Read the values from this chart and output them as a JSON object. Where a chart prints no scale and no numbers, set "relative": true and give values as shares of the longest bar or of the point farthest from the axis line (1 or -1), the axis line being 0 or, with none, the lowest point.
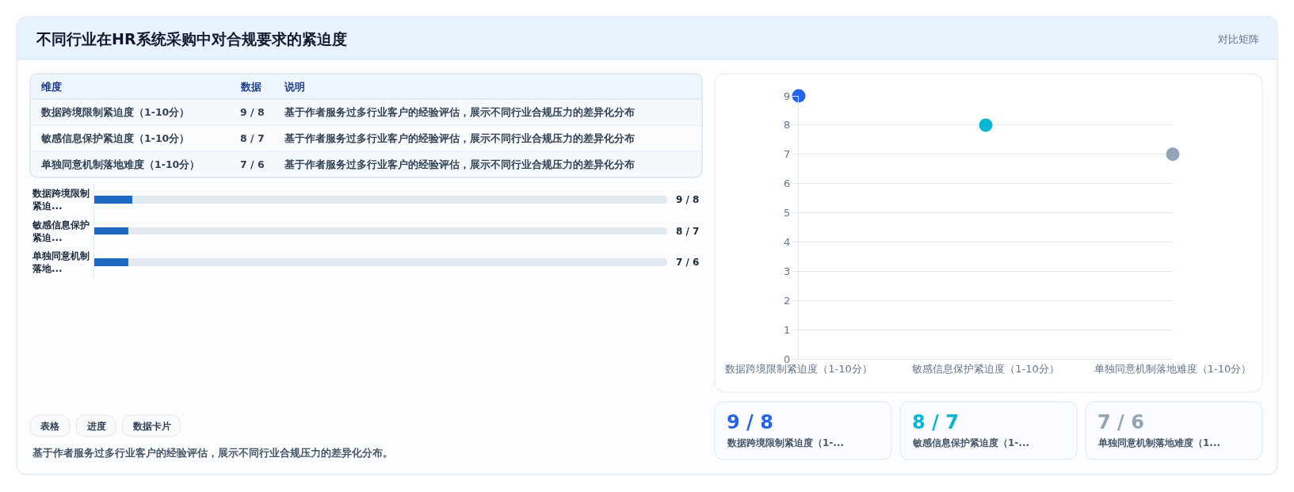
{
  "chart_data": [
    {
      "type": "other",
      "title": "不同行业在HR系统采购中对合规要求的紧迫度",
      "annotations": [
        "对比矩阵"
      ]
    },
    {
      "type": "other",
      "categories": [
        "维度",
        "数据",
        "说明"
      ],
      "annotations": [
        "数据跨境限制紧迫度（1-10分）",
        "9 / 8",
        "基于作者服务过多行业客户的经验评估，展示不同行业合规压力的差异化分布",
        "敏感信息保护紧迫度（1-10分）",
        "8 / 7",
        "基于作者服务过多行业客户的经验评估，展示不同行业合规压力的差异化分布",
        "单独同意机制落地难度（1-10分）",
        "7 / 6",
        "基于作者服务过多行业客户的经验评估，展示不同行业合规压力的差异化分布"
      ]
    },
    {
      "type": "bar",
      "orientation": "horizontal",
      "stacked": true,
      "relative": true,
      "categories": [
        "数据跨境限制紧迫...",
        "敏感信息保护紧迫...",
        "单独同意机制落地..."
      ],
      "series": [
        {
          "color": "#1d6ac4",
          "values": [
            0.066,
            0.06,
            0.06
          ]
        },
        {
          "color": "#e2e8f0",
          "values": [
            0.934,
            0.94,
            0.94
          ]
        }
      ]
    },
    {
      "type": "other",
      "annotations": [
        "9 / 8",
        "8 / 7",
        "7 / 6"
      ]
    },
    {
      "type": "other",
      "annotations": [
        "表格",
        "进度",
        "数据卡片",
        "基于作者服务过多行业客户的经验评估，展示不同行业合规压力的差异化分布。"
      ]
    },
    {
      "type": "scatter",
      "categories": [
        "数据跨境限制紧迫度（1-10分）",
        "敏感信息保护紧迫度（1-10分）",
        "单独同意机制落地难度（1-10分）"
      ],
      "values": [
        9,
        8,
        7
      ],
      "colors": [
        "#2563eb",
        "#06b6d4",
        "#94a3b8"
      ],
      "ylim": [
        0,
        9
      ],
      "yticks": [
        0,
        1,
        2,
        3,
        4,
        5,
        6,
        7,
        8,
        9
      ],
      "grid": "y",
      "marker": "circle"
    },
    {
      "type": "other",
      "categories": [
        "数据跨境限制紧迫度（1-...",
        "敏感信息保护紧迫度（1-...",
        "单独同意机制落地难度（1..."
      ],
      "annotations": [
        "9 / 8",
        "8 / 7",
        "7 / 6"
      ]
    }
  ]
}
